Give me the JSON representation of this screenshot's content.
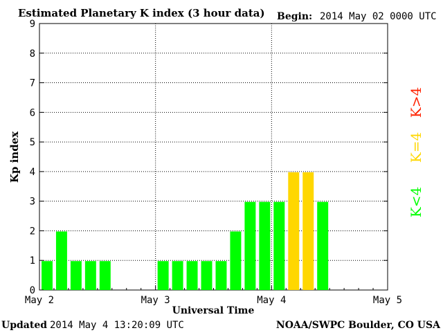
{
  "chart_data": {
    "type": "bar",
    "title": "Estimated Planetary K index (3 hour data)",
    "begin_label": "Begin:",
    "begin_value": "2014 May 02 0000 UTC",
    "xlabel": "Universal Time",
    "ylabel": "Kp index",
    "ylim": [
      0,
      9
    ],
    "y_ticks": [
      "0",
      "1",
      "2",
      "3",
      "4",
      "5",
      "6",
      "7",
      "8",
      "9"
    ],
    "x_ticks": [
      "May 2",
      "May 3",
      "May 4",
      "May 5"
    ],
    "grid": true,
    "bins_per_day": 8,
    "values": [
      1,
      2,
      1,
      1,
      1,
      null,
      null,
      null,
      1,
      1,
      1,
      1,
      1,
      2,
      3,
      3,
      3,
      4,
      4,
      3,
      null,
      null,
      null,
      null
    ],
    "legend": [
      {
        "label": "K<4",
        "color": "#00ff00"
      },
      {
        "label": "K=4",
        "color": "#ffd700"
      },
      {
        "label": "K>4",
        "color": "#ff2200"
      }
    ],
    "colors": {
      "low": "#00ff00",
      "equal": "#ffd700",
      "high": "#ff2200"
    }
  },
  "footer": {
    "updated_label": "Updated",
    "updated_value": "2014 May  4 13:20:09 UTC",
    "credit": "NOAA/SWPC Boulder, CO USA"
  }
}
